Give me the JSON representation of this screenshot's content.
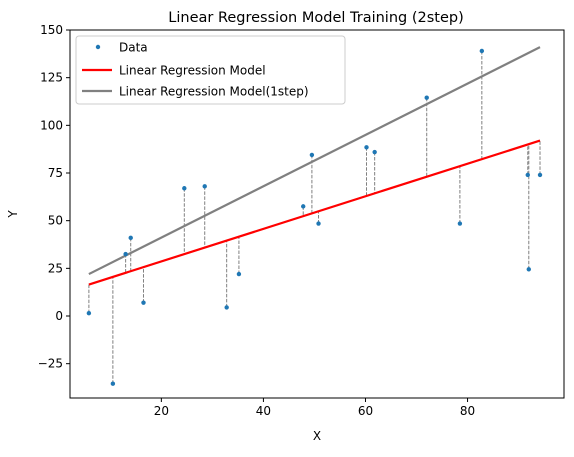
{
  "chart_data": {
    "type": "scatter",
    "title": "Linear Regression Model Training (2step)",
    "xlabel": "X",
    "ylabel": "Y",
    "xlim": [
      2.1,
      98.9
    ],
    "ylim": [
      -43,
      150
    ],
    "xticks": [
      20,
      40,
      60,
      80
    ],
    "yticks": [
      -25,
      0,
      25,
      50,
      75,
      100,
      125,
      150
    ],
    "legend_position": "top-left",
    "grid": false,
    "colors": {
      "data": "#1f77b4",
      "model2": "#ff0000",
      "model1": "#808080",
      "residual": "#808080"
    },
    "series": [
      {
        "name": "Data",
        "kind": "scatter",
        "x": [
          5.8,
          10.5,
          13.0,
          14.0,
          16.5,
          24.5,
          28.5,
          32.8,
          35.2,
          47.8,
          49.5,
          50.8,
          60.2,
          61.8,
          72.0,
          78.5,
          82.8,
          91.8,
          92.0,
          94.2
        ],
        "y": [
          1.5,
          -35.5,
          32.5,
          41.0,
          7.0,
          67.0,
          68.0,
          4.5,
          22.0,
          57.5,
          84.5,
          48.5,
          88.5,
          86.0,
          114.5,
          48.5,
          139.0,
          74.0,
          24.5,
          74.0
        ]
      },
      {
        "name": "Linear Regression Model",
        "kind": "line",
        "x": [
          5.8,
          94.2
        ],
        "y": [
          16.5,
          92.0
        ]
      },
      {
        "name": "Linear Regression Model(1step)",
        "kind": "line",
        "x": [
          5.8,
          94.2
        ],
        "y": [
          22.0,
          141.0
        ]
      }
    ],
    "residuals": "dashed vertical lines from each data point to Linear Regression Model"
  }
}
